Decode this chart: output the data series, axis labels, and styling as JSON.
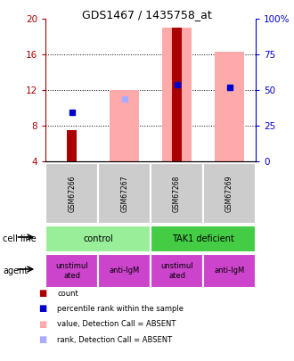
{
  "title": "GDS1467 / 1435758_at",
  "samples": [
    "GSM67266",
    "GSM67267",
    "GSM67268",
    "GSM67269"
  ],
  "ylim_left": [
    4,
    20
  ],
  "ylim_right": [
    0,
    100
  ],
  "yticks_left": [
    4,
    8,
    12,
    16,
    20
  ],
  "yticks_right": [
    0,
    25,
    50,
    75,
    100
  ],
  "red_bars": {
    "GSM67266": 7.5,
    "GSM67268": 19.0
  },
  "blue_squares": {
    "GSM67266": 9.5,
    "GSM67268": 12.65,
    "GSM67269": 12.3
  },
  "pink_bars": {
    "GSM67267": [
      4,
      12.0
    ],
    "GSM67268": [
      4,
      19.0
    ],
    "GSM67269": [
      4,
      16.3
    ]
  },
  "lightblue_squares": {
    "GSM67267": 11.0,
    "GSM67269": 12.3
  },
  "color_red": "#aa0000",
  "color_blue": "#0000cc",
  "color_pink": "#ffaaaa",
  "color_lightblue": "#aaaaff",
  "color_green_light": "#99ee99",
  "color_green_dark": "#44cc44",
  "color_magenta": "#cc44cc",
  "color_gray": "#cccccc",
  "agent_labels": [
    "unstimul\nated",
    "anti-IgM",
    "unstimul\nated",
    "anti-IgM"
  ],
  "agent_colors": [
    "#cc44cc",
    "#cc44cc",
    "#cc44cc",
    "#cc44cc"
  ]
}
